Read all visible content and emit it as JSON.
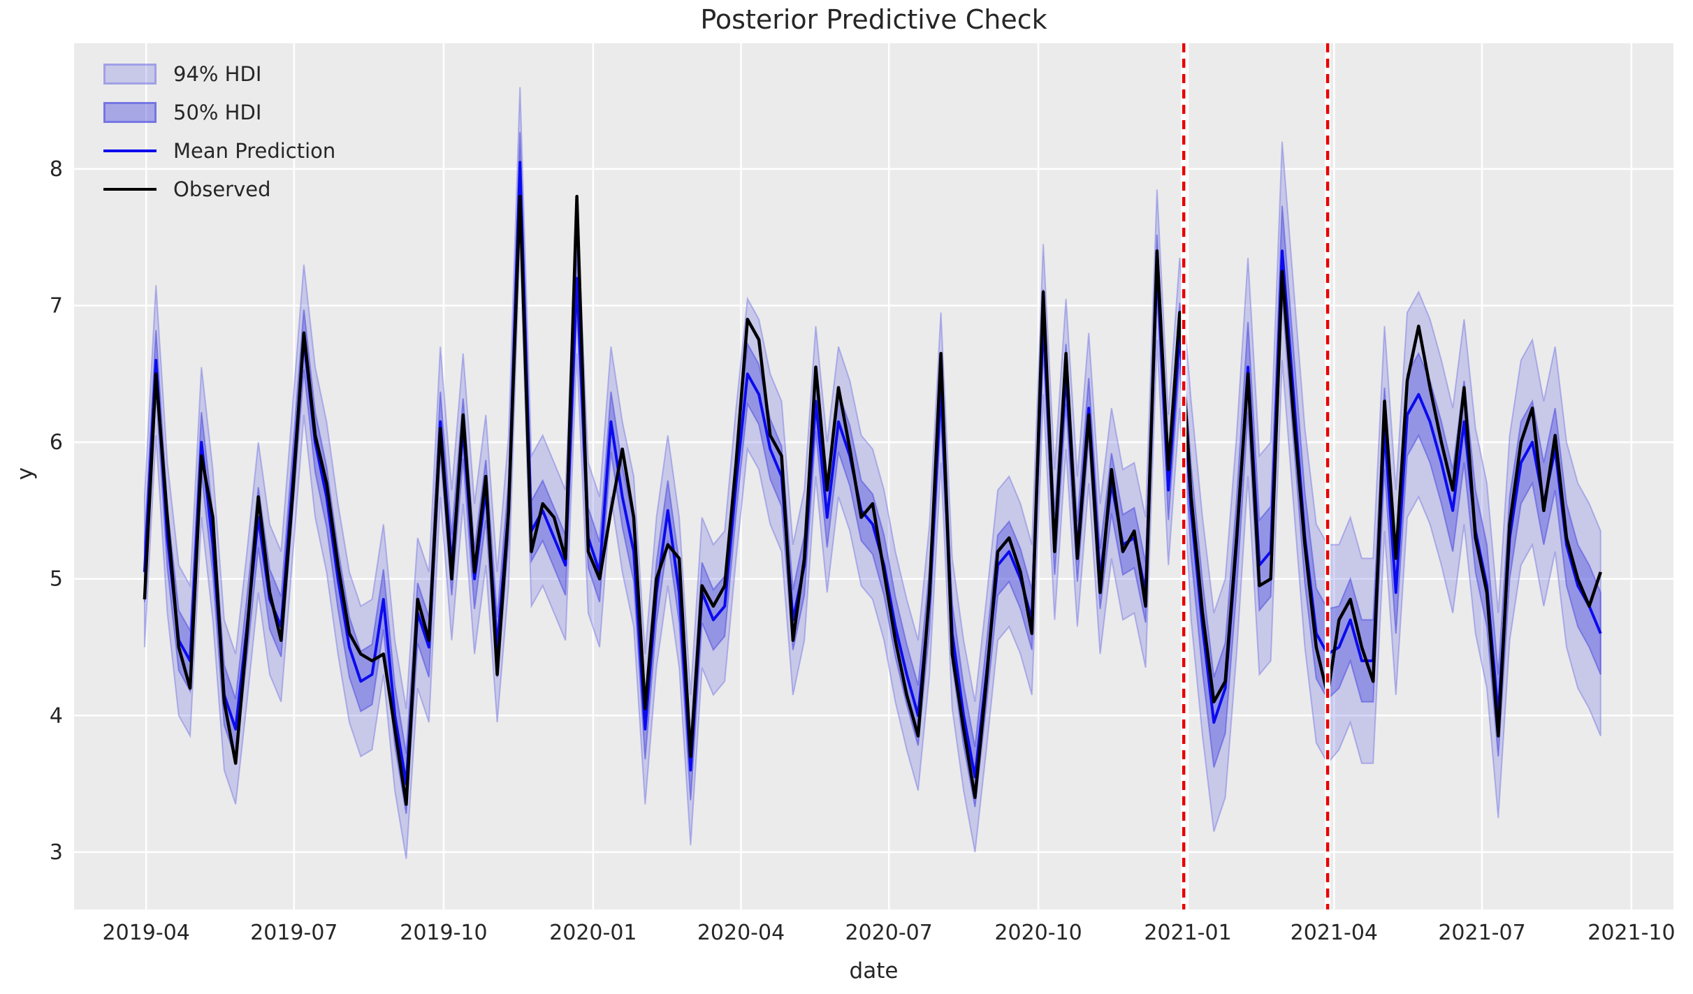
{
  "figure": {
    "title": "Posterior Predictive Check",
    "xlabel": "date",
    "ylabel": "y"
  },
  "legend": {
    "items": [
      {
        "label": "94% HDI",
        "type": "band-light"
      },
      {
        "label": "50% HDI",
        "type": "band-dark"
      },
      {
        "label": "Mean Prediction",
        "type": "line-blue"
      },
      {
        "label": "Observed",
        "type": "line-black"
      }
    ]
  },
  "colors": {
    "axes_background": "#ebebeb",
    "gridline": "#ffffff",
    "observed_line": "#000000",
    "mean_line": "#0b0bee",
    "hdi94_fill": "rgba(110,110,228,0.28)",
    "hdi94_edge": "rgba(110,110,228,0.45)",
    "hdi50_fill": "rgba(85,85,225,0.45)",
    "hdi50_edge": "rgba(85,85,225,0.6)",
    "red_vline": "#e80000",
    "text": "#262626"
  },
  "chart_data": {
    "type": "line",
    "title": "Posterior Predictive Check",
    "xlabel": "date",
    "ylabel": "y",
    "grid": true,
    "legend_position": "upper left",
    "x_tick_labels": [
      "2019-04",
      "2019-07",
      "2019-10",
      "2020-01",
      "2020-04",
      "2020-07",
      "2020-10",
      "2021-01",
      "2021-04",
      "2021-07",
      "2021-10"
    ],
    "x_tick_weeks": [
      0.14,
      13.14,
      26.29,
      39.43,
      52.43,
      65.43,
      78.57,
      91.71,
      104.57,
      117.57,
      130.71
    ],
    "y_ticks": [
      3,
      4,
      5,
      6,
      7,
      8
    ],
    "x_range_weeks": [
      -6.2,
      134.4
    ],
    "y_range": [
      2.58,
      8.92
    ],
    "series_start_date": "2019-03-31",
    "series_freq_days": 7,
    "n_points": 129,
    "red_vlines_weeks": [
      91.35,
      104.0
    ],
    "series": [
      {
        "name": "Observed",
        "values": [
          4.85,
          6.5,
          5.45,
          4.5,
          4.2,
          5.9,
          5.45,
          4.1,
          3.65,
          4.6,
          5.6,
          4.9,
          4.55,
          5.6,
          6.8,
          6.05,
          5.7,
          5.1,
          4.6,
          4.45,
          4.4,
          4.45,
          3.9,
          3.35,
          4.85,
          4.55,
          6.1,
          5.0,
          6.2,
          5.05,
          5.75,
          4.3,
          5.5,
          7.8,
          5.2,
          5.55,
          5.45,
          5.15,
          7.8,
          5.2,
          5.0,
          5.5,
          5.95,
          5.45,
          4.05,
          5.0,
          5.25,
          5.15,
          3.7,
          4.95,
          4.8,
          4.95,
          5.85,
          6.9,
          6.75,
          6.05,
          5.9,
          4.55,
          5.15,
          6.55,
          5.65,
          6.4,
          5.95,
          5.45,
          5.55,
          5.05,
          4.55,
          4.15,
          3.85,
          4.9,
          6.65,
          4.45,
          3.9,
          3.4,
          4.25,
          5.2,
          5.3,
          5.05,
          4.6,
          7.1,
          5.2,
          6.65,
          5.15,
          6.2,
          4.9,
          5.8,
          5.2,
          5.35,
          4.8,
          7.4,
          5.8,
          6.95,
          5.6,
          4.75,
          4.1,
          4.25,
          5.3,
          6.5,
          4.95,
          5.0,
          7.25,
          6.2,
          5.25,
          4.5,
          4.15,
          4.7,
          4.85,
          4.5,
          4.25,
          6.3,
          5.15,
          6.45,
          6.85,
          6.4,
          6.0,
          5.65,
          6.4,
          5.3,
          4.9,
          3.85,
          5.4,
          6.0,
          6.25,
          5.5,
          6.05,
          5.3,
          5.0,
          4.8,
          5.05
        ]
      },
      {
        "name": "Mean Prediction",
        "values": [
          5.05,
          6.6,
          5.3,
          4.55,
          4.4,
          6.0,
          5.25,
          4.15,
          3.9,
          4.65,
          5.45,
          4.85,
          4.65,
          5.7,
          6.75,
          6.0,
          5.6,
          5.0,
          4.5,
          4.25,
          4.3,
          4.85,
          4.0,
          3.5,
          4.75,
          4.5,
          6.15,
          5.1,
          6.1,
          5.0,
          5.65,
          4.5,
          5.5,
          8.05,
          5.35,
          5.5,
          5.3,
          5.1,
          7.2,
          5.3,
          5.05,
          6.15,
          5.6,
          5.2,
          3.9,
          4.9,
          5.5,
          4.9,
          3.6,
          4.9,
          4.7,
          4.8,
          5.7,
          6.5,
          6.35,
          5.95,
          5.75,
          4.7,
          5.1,
          6.3,
          5.45,
          6.15,
          5.9,
          5.5,
          5.4,
          5.1,
          4.65,
          4.3,
          4.0,
          4.85,
          6.4,
          4.6,
          4.0,
          3.55,
          4.3,
          5.1,
          5.2,
          5.0,
          4.7,
          6.9,
          5.25,
          6.5,
          5.2,
          6.25,
          5.0,
          5.7,
          5.25,
          5.3,
          4.9,
          7.3,
          5.65,
          6.8,
          5.5,
          4.65,
          3.95,
          4.2,
          5.25,
          6.55,
          5.1,
          5.2,
          7.4,
          6.35,
          5.3,
          4.6,
          4.45,
          4.5,
          4.7,
          4.4,
          4.4,
          6.1,
          4.9,
          6.2,
          6.35,
          6.15,
          5.85,
          5.5,
          6.15,
          5.35,
          4.95,
          4.0,
          5.3,
          5.85,
          6.0,
          5.55,
          5.95,
          5.25,
          4.95,
          4.8,
          4.6
        ]
      }
    ],
    "hdi_regimes": {
      "breaks": [
        92,
        105
      ],
      "hdi94_half": [
        0.55,
        0.8,
        0.75
      ],
      "hdi50_half": [
        0.22,
        0.33,
        0.3
      ]
    }
  }
}
